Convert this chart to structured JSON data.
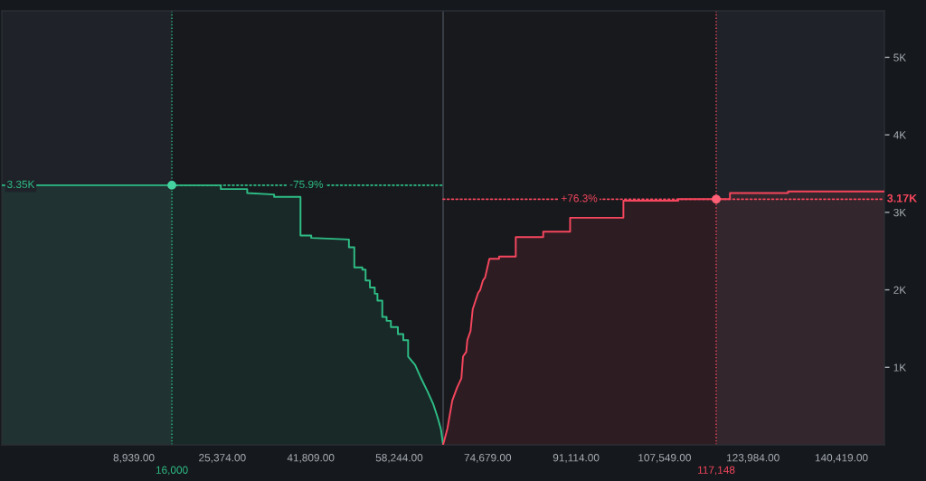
{
  "chart_data": {
    "type": "area",
    "xlim": [
      -15600,
      148400
    ],
    "xticks": [
      {
        "value": 8939,
        "label": "8,939.00"
      },
      {
        "value": 25374,
        "label": "25,374.00"
      },
      {
        "value": 41809,
        "label": "41,809.00"
      },
      {
        "value": 58244,
        "label": "58,244.00"
      },
      {
        "value": 74679,
        "label": "74,679.00"
      },
      {
        "value": 91114,
        "label": "91,114.00"
      },
      {
        "value": 107549,
        "label": "107,549.00"
      },
      {
        "value": 123984,
        "label": "123,984.00"
      },
      {
        "value": 140419,
        "label": "140,419.00"
      }
    ],
    "ylim": [
      0,
      5600
    ],
    "yticks": [
      {
        "value": 1000,
        "label": "1K"
      },
      {
        "value": 2000,
        "label": "2K"
      },
      {
        "value": 3000,
        "label": "3K"
      },
      {
        "value": 4000,
        "label": "4K"
      },
      {
        "value": 5000,
        "label": "5K"
      }
    ],
    "series": [
      {
        "color": "#2ebd85",
        "x": [
          -15600,
          25100,
          25100,
          30000,
          30000,
          35000,
          35000,
          39900,
          39900,
          41900,
          41900,
          48900,
          48900,
          49900,
          49900,
          51400,
          51400,
          52000,
          52000,
          52800,
          52800,
          53700,
          53700,
          54200,
          54200,
          55100,
          55100,
          55900,
          55900,
          56700,
          56700,
          58000,
          58000,
          59000,
          59000,
          59900,
          59900,
          61200,
          62300,
          63500,
          64600,
          65400,
          66000,
          66400
        ],
        "values": [
          3350,
          3350,
          3300,
          3300,
          3250,
          3230,
          3200,
          3200,
          2700,
          2700,
          2670,
          2650,
          2550,
          2550,
          2290,
          2290,
          2260,
          2260,
          2120,
          2120,
          2030,
          2030,
          1950,
          1950,
          1860,
          1860,
          1650,
          1650,
          1600,
          1600,
          1520,
          1520,
          1430,
          1430,
          1350,
          1350,
          1140,
          1030,
          860,
          690,
          520,
          350,
          200,
          0
        ]
      },
      {
        "color": "#f6465d",
        "x": [
          66400,
          67200,
          68100,
          69000,
          69800,
          70100,
          70700,
          70900,
          71500,
          71900,
          72900,
          73300,
          73800,
          74200,
          75000,
          76800,
          76800,
          79900,
          79900,
          85000,
          85000,
          90000,
          90000,
          99900,
          99900,
          110100,
          110100,
          119700,
          119700,
          130500,
          130500,
          148400
        ],
        "values": [
          0,
          210,
          570,
          740,
          860,
          1140,
          1200,
          1350,
          1470,
          1750,
          1960,
          2000,
          2120,
          2160,
          2400,
          2400,
          2430,
          2430,
          2680,
          2680,
          2750,
          2750,
          2930,
          2930,
          3150,
          3150,
          3170,
          3170,
          3250,
          3250,
          3270,
          3270
        ]
      },
      {
        "type": "line",
        "color": "#2ebd85",
        "line_style": "dotted",
        "x": [
          16000,
          66400
        ],
        "values": [
          3350,
          3350
        ]
      },
      {
        "type": "line",
        "color": "#f6465d",
        "line_style": "dotted",
        "x": [
          66400,
          148400
        ],
        "values": [
          3170,
          3170
        ]
      },
      {
        "type": "scatter",
        "color": "#45d4a0",
        "marker": "circle",
        "x": [
          16000
        ],
        "values": [
          3350
        ]
      },
      {
        "type": "scatter",
        "color": "#ff6075",
        "marker": "circle",
        "x": [
          117148
        ],
        "values": [
          3170
        ]
      }
    ],
    "ref_lines": [
      {
        "axis": "x",
        "value": 16000,
        "label": "16,000",
        "color": "#2ebd85",
        "line_style": "dotted"
      },
      {
        "axis": "x",
        "value": 66400,
        "color": "#474d57",
        "line_style": "solid"
      },
      {
        "axis": "x",
        "value": 117148,
        "label": "117,148",
        "color": "#f6465d",
        "line_style": "dotted"
      }
    ],
    "bands": [
      {
        "axis": "x",
        "from": -15600,
        "to": 16000,
        "color": "#1f2329"
      },
      {
        "axis": "x",
        "from": 117148,
        "to": 148400,
        "color": "#1f2329"
      }
    ],
    "annotations": [
      {
        "text": "3.35K",
        "x": -15600,
        "y": 3350
      },
      {
        "text": "-75.9%",
        "x": 41000,
        "y": 3350
      },
      {
        "text": "+76.3%",
        "x": 91700,
        "y": 3170
      },
      {
        "text": "3.17K",
        "x": 148400,
        "y": 3170
      }
    ]
  }
}
